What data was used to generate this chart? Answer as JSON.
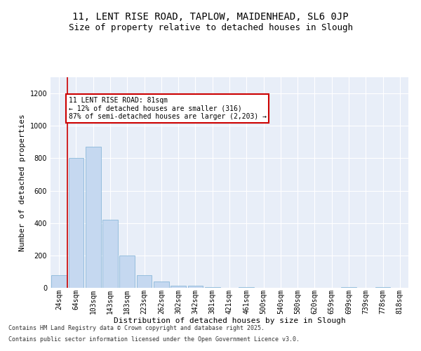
{
  "title1": "11, LENT RISE ROAD, TAPLOW, MAIDENHEAD, SL6 0JP",
  "title2": "Size of property relative to detached houses in Slough",
  "xlabel": "Distribution of detached houses by size in Slough",
  "ylabel": "Number of detached properties",
  "bar_color": "#c5d8f0",
  "bar_edge_color": "#7bafd4",
  "categories": [
    "24sqm",
    "64sqm",
    "103sqm",
    "143sqm",
    "183sqm",
    "223sqm",
    "262sqm",
    "302sqm",
    "342sqm",
    "381sqm",
    "421sqm",
    "461sqm",
    "500sqm",
    "540sqm",
    "580sqm",
    "620sqm",
    "659sqm",
    "699sqm",
    "739sqm",
    "778sqm",
    "818sqm"
  ],
  "values": [
    80,
    800,
    870,
    420,
    200,
    80,
    40,
    15,
    15,
    5,
    0,
    5,
    0,
    0,
    0,
    0,
    0,
    5,
    0,
    5,
    0
  ],
  "ylim": [
    0,
    1300
  ],
  "yticks": [
    0,
    200,
    400,
    600,
    800,
    1000,
    1200
  ],
  "property_line_x": 0.5,
  "annotation_text": "11 LENT RISE ROAD: 81sqm\n← 12% of detached houses are smaller (316)\n87% of semi-detached houses are larger (2,203) →",
  "annotation_box_color": "#ffffff",
  "annotation_box_edge": "#cc0000",
  "property_line_color": "#cc0000",
  "background_color": "#e8eef8",
  "footer1": "Contains HM Land Registry data © Crown copyright and database right 2025.",
  "footer2": "Contains public sector information licensed under the Open Government Licence v3.0.",
  "title1_fontsize": 10,
  "title2_fontsize": 9,
  "xlabel_fontsize": 8,
  "ylabel_fontsize": 8,
  "tick_fontsize": 7,
  "footer_fontsize": 6,
  "annotation_fontsize": 7
}
